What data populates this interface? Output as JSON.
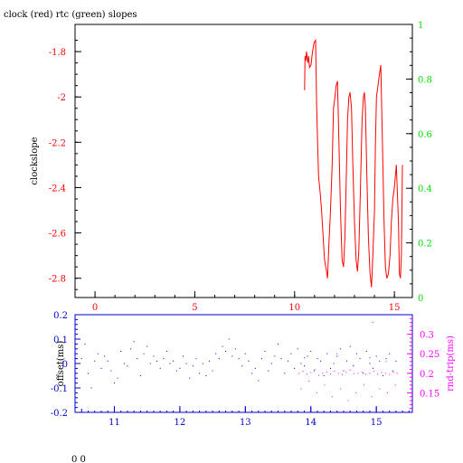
{
  "title": "clock (red) rtc (green) slopes",
  "footer": "0 0",
  "colors": {
    "red": "#ff0000",
    "green": "#00dd00",
    "blue": "#0000cc",
    "magenta": "#ff00ff",
    "black": "#000000"
  },
  "chart_data": [
    {
      "type": "line",
      "title": "clock (red) rtc (green) slopes",
      "ylabel": "clockslope",
      "y2label": "",
      "xlim": [
        -1,
        15.9
      ],
      "ylim": [
        -2.885,
        -1.68
      ],
      "y2lim": [
        0,
        1
      ],
      "xticks": [
        0,
        5,
        10,
        15
      ],
      "yticks": [
        -1.8,
        -2,
        -2.2,
        -2.4,
        -2.6,
        -2.8
      ],
      "yticklabels": [
        "-1.8",
        "-2",
        "-2.2",
        "-2.4",
        "-2.6",
        "-2.8"
      ],
      "y2ticks": [
        0,
        0.2,
        0.4,
        0.6,
        0.8,
        1
      ],
      "y2ticklabels": [
        "0",
        "0.2",
        "0.4",
        "0.6",
        "0.8",
        "1"
      ],
      "series": [
        {
          "color": "red",
          "x": [
            10.5,
            10.52,
            10.56,
            10.6,
            10.66,
            10.7,
            10.75,
            10.82,
            10.9,
            10.98,
            11.05,
            11.1,
            11.15,
            11.2,
            11.28,
            11.35,
            11.42,
            11.5,
            11.58,
            11.65,
            11.72,
            11.8,
            11.88,
            11.95,
            12.02,
            12.08,
            12.15,
            12.22,
            12.3,
            12.38,
            12.45,
            12.52,
            12.58,
            12.65,
            12.72,
            12.78,
            12.85,
            12.92,
            13.0,
            13.08,
            13.15,
            13.22,
            13.3,
            13.38,
            13.45,
            13.5,
            13.55,
            13.62,
            13.7,
            13.78,
            13.85,
            13.92,
            14.0,
            14.05,
            14.1,
            14.18,
            14.25,
            14.32,
            14.4,
            14.48,
            14.55,
            14.62,
            14.7,
            14.78,
            14.85,
            14.92,
            15.0,
            15.05,
            15.1,
            15.15,
            15.2,
            15.25,
            15.3,
            15.35,
            15.4
          ],
          "y": [
            -1.97,
            -1.82,
            -1.84,
            -1.8,
            -1.85,
            -1.82,
            -1.87,
            -1.86,
            -1.8,
            -1.76,
            -1.75,
            -2.03,
            -2.2,
            -2.35,
            -2.42,
            -2.5,
            -2.6,
            -2.72,
            -2.76,
            -2.8,
            -2.65,
            -2.5,
            -2.3,
            -2.05,
            -2.0,
            -1.95,
            -1.93,
            -2.2,
            -2.5,
            -2.72,
            -2.75,
            -2.62,
            -2.4,
            -2.1,
            -2.0,
            -1.98,
            -2.05,
            -2.3,
            -2.55,
            -2.72,
            -2.77,
            -2.68,
            -2.4,
            -2.1,
            -2.0,
            -1.98,
            -2.05,
            -2.35,
            -2.62,
            -2.78,
            -2.84,
            -2.7,
            -2.5,
            -2.2,
            -2.0,
            -1.95,
            -1.9,
            -1.86,
            -2.2,
            -2.55,
            -2.75,
            -2.8,
            -2.78,
            -2.7,
            -2.55,
            -2.45,
            -2.4,
            -2.35,
            -2.3,
            -2.42,
            -2.55,
            -2.78,
            -2.8,
            -2.7,
            -2.3
          ]
        }
      ]
    },
    {
      "type": "scatter",
      "ylabel": "offset(ms)",
      "y2label": "rnd-trip(ms)",
      "xlim": [
        10.4,
        15.55
      ],
      "ylim": [
        -0.2,
        0.2
      ],
      "y2lim": [
        0.1,
        0.35
      ],
      "xticks": [
        11,
        12,
        13,
        14,
        15
      ],
      "yticks": [
        0.2,
        0.1,
        0,
        -0.1,
        -0.2
      ],
      "yticklabels": [
        "0.2",
        "0.1",
        "0",
        "-0.1",
        "-0.2"
      ],
      "y2ticks": [
        0.3,
        0.25,
        0.2,
        0.15
      ],
      "y2ticklabels": [
        "0.3",
        "0.25",
        "0.2",
        "0.15"
      ],
      "series": [
        {
          "color": "blue",
          "x": [
            10.5,
            10.55,
            10.6,
            10.65,
            10.7,
            10.75,
            10.8,
            10.85,
            10.9,
            10.95,
            11.0,
            11.05,
            11.1,
            11.15,
            11.2,
            11.25,
            11.3,
            11.35,
            11.4,
            11.45,
            11.5,
            11.55,
            11.6,
            11.65,
            11.7,
            11.75,
            11.8,
            11.85,
            11.9,
            11.95,
            12.0,
            12.05,
            12.1,
            12.15,
            12.2,
            12.25,
            12.3,
            12.35,
            12.4,
            12.45,
            12.5,
            12.55,
            12.6,
            12.65,
            12.7,
            12.75,
            12.8,
            12.85,
            12.9,
            12.95,
            13.0,
            13.05,
            13.1,
            13.15,
            13.2,
            13.25,
            13.3,
            13.35,
            13.4,
            13.45,
            13.5,
            13.55,
            13.6,
            13.65,
            13.7,
            13.75,
            13.8,
            13.85,
            13.9,
            13.95,
            14.0,
            14.05,
            14.1,
            14.15,
            14.2,
            14.25,
            14.3,
            14.35,
            14.4,
            14.45,
            14.5,
            14.55,
            14.6,
            14.65,
            14.7,
            14.75,
            14.8,
            14.85,
            14.9,
            14.95,
            15.0,
            15.05,
            15.1,
            15.15,
            15.2,
            15.25,
            15.3
          ],
          "y": [
            0.02,
            0.08,
            -0.04,
            -0.1,
            0.01,
            0.04,
            -0.02,
            0.03,
            0.01,
            -0.03,
            -0.08,
            -0.06,
            0.05,
            0.0,
            -0.01,
            0.06,
            0.09,
            0.02,
            -0.05,
            0.04,
            0.07,
            0.0,
            0.03,
            0.01,
            -0.02,
            0.02,
            0.05,
            0.0,
            0.01,
            -0.03,
            -0.02,
            0.03,
            0.0,
            -0.06,
            -0.01,
            0.02,
            -0.04,
            0.0,
            -0.05,
            0.01,
            -0.03,
            0.04,
            0.02,
            0.07,
            0.05,
            0.1,
            0.03,
            0.06,
            0.02,
            -0.01,
            0.04,
            0.01,
            -0.04,
            -0.02,
            -0.07,
            0.02,
            0.05,
            -0.03,
            0.0,
            0.03,
            0.08,
            0.02,
            -0.04,
            0.01,
            0.04,
            -0.02,
            0.06,
            0.0,
            -0.01,
            0.03,
            0.05,
            -0.03,
            0.02,
            0.01,
            -0.05,
            0.04,
            -0.02,
            0.0,
            0.03,
            0.06,
            -0.03,
            0.01,
            0.07,
            -0.01,
            0.04,
            0.02,
            -0.04,
            0.05,
            0.0,
            -0.02,
            0.03,
            0.01,
            -0.05,
            0.02,
            0.04,
            -0.03,
            0.01
          ]
        },
        {
          "color": "magenta",
          "x": [
            13.82,
            13.88,
            13.94,
            14.0,
            14.06,
            14.12,
            14.18,
            14.24,
            14.3,
            14.36,
            14.42,
            14.48,
            14.54,
            14.6,
            14.66,
            14.72,
            14.78,
            14.84,
            14.9,
            14.96,
            15.02,
            15.08,
            15.14,
            15.2,
            15.26,
            15.32,
            13.85,
            13.97,
            14.09,
            14.21,
            14.33,
            14.45,
            14.57,
            14.69,
            14.81,
            14.93,
            15.05,
            15.17,
            15.29,
            13.9,
            14.15,
            14.4,
            14.65,
            14.9,
            15.15,
            14.95
          ],
          "y": [
            0.2,
            0.205,
            0.198,
            0.202,
            0.21,
            0.195,
            0.2,
            0.203,
            0.198,
            0.205,
            0.2,
            0.197,
            0.202,
            0.208,
            0.199,
            0.2,
            0.203,
            0.197,
            0.2,
            0.205,
            0.198,
            0.202,
            0.2,
            0.197,
            0.203,
            0.2,
            0.16,
            0.18,
            0.15,
            0.17,
            0.14,
            0.16,
            0.13,
            0.15,
            0.17,
            0.14,
            0.16,
            0.15,
            0.17,
            0.24,
            0.23,
            0.25,
            0.22,
            0.24,
            0.23,
            0.33
          ]
        }
      ]
    }
  ]
}
